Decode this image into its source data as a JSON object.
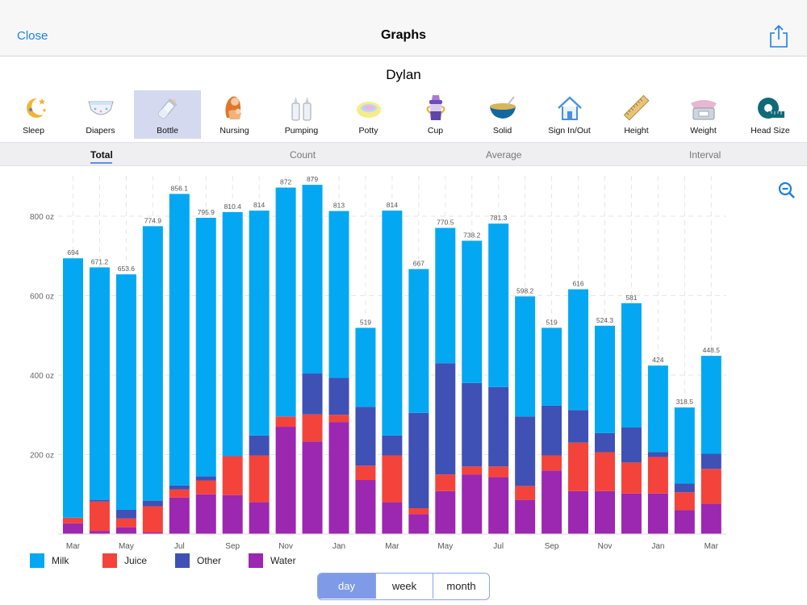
{
  "navbar": {
    "close_label": "Close",
    "title": "Graphs",
    "share_icon": "share-icon"
  },
  "child_name": "Dylan",
  "categories": [
    {
      "label": "Sleep",
      "icon": "moon-stars-icon"
    },
    {
      "label": "Diapers",
      "icon": "diaper-icon"
    },
    {
      "label": "Bottle",
      "icon": "baby-bottle-icon",
      "active": true
    },
    {
      "label": "Nursing",
      "icon": "nursing-mother-icon"
    },
    {
      "label": "Pumping",
      "icon": "breast-pump-icon"
    },
    {
      "label": "Potty",
      "icon": "potty-icon"
    },
    {
      "label": "Cup",
      "icon": "sippy-cup-icon"
    },
    {
      "label": "Solid",
      "icon": "food-bowl-icon"
    },
    {
      "label": "Sign In/Out",
      "icon": "house-icon"
    },
    {
      "label": "Height",
      "icon": "ruler-icon"
    },
    {
      "label": "Weight",
      "icon": "scale-icon"
    },
    {
      "label": "Head Size",
      "icon": "measuring-tape-icon"
    }
  ],
  "segments": [
    {
      "label": "Total",
      "active": true
    },
    {
      "label": "Count"
    },
    {
      "label": "Average"
    },
    {
      "label": "Interval"
    }
  ],
  "zoom_icon": "zoom-out-icon",
  "colors": {
    "milk": "#04a8f2",
    "juice": "#f4433b",
    "other": "#3f51b5",
    "water": "#9c27b0",
    "accent": "#1e7fe0"
  },
  "legend": [
    {
      "label": "Milk",
      "color": "#04a8f2"
    },
    {
      "label": "Juice",
      "color": "#f4433b"
    },
    {
      "label": "Other",
      "color": "#3f51b5"
    },
    {
      "label": "Water",
      "color": "#9c27b0"
    }
  ],
  "range_toggle": {
    "options": [
      "day",
      "week",
      "month"
    ],
    "selected": "day"
  },
  "chart_data": {
    "type": "bar",
    "stacked": true,
    "y_tick_labels": [
      "200 oz",
      "400 oz",
      "600 oz",
      "800 oz"
    ],
    "y_ticks": [
      200,
      400,
      600,
      800
    ],
    "ylim": [
      0,
      900
    ],
    "x_tick_labels": [
      "Mar",
      "May",
      "Jul",
      "Sep",
      "Nov",
      "Jan",
      "Mar",
      "May",
      "Jul",
      "Sep",
      "Nov",
      "Jan",
      "Mar"
    ],
    "x_tick_every": 2,
    "grid": true,
    "legend_position": "bottom-left",
    "totals": [
      694,
      671.2,
      653.6,
      774.9,
      856.1,
      795.9,
      810.4,
      814,
      872,
      879,
      813,
      519,
      814,
      667,
      770.5,
      738.2,
      781.3,
      598.2,
      519,
      616,
      524.3,
      581,
      424,
      318.5,
      448.5
    ],
    "series": [
      {
        "name": "Water",
        "color": "#9c27b0",
        "values": [
          27,
          8,
          17,
          4,
          92,
          100,
          98,
          80,
          270,
          233,
          282,
          136,
          80,
          50,
          108,
          150,
          143,
          86,
          160,
          108,
          108,
          102,
          102,
          60,
          76
        ]
      },
      {
        "name": "Juice",
        "color": "#f4433b",
        "values": [
          14,
          74,
          22,
          66,
          20,
          35,
          98,
          118,
          26,
          68,
          18,
          36,
          118,
          15,
          42,
          20,
          27,
          35,
          38,
          122,
          98,
          78,
          92,
          45,
          88
        ]
      },
      {
        "name": "Other",
        "color": "#3f51b5",
        "values": [
          0,
          4,
          22,
          14,
          10,
          10,
          0,
          50,
          0,
          103,
          93,
          148,
          50,
          240,
          280,
          210,
          200,
          175,
          125,
          82,
          48,
          88,
          12,
          22,
          38
        ]
      },
      {
        "name": "Milk",
        "color": "#04a8f2",
        "values": [
          653,
          585.2,
          592.6,
          690.9,
          734.1,
          650.9,
          614.4,
          566,
          576,
          475,
          420,
          199,
          566,
          362,
          340.5,
          358.2,
          411.3,
          302.2,
          196,
          304,
          270.3,
          313,
          218,
          191.5,
          246.5
        ]
      }
    ]
  }
}
